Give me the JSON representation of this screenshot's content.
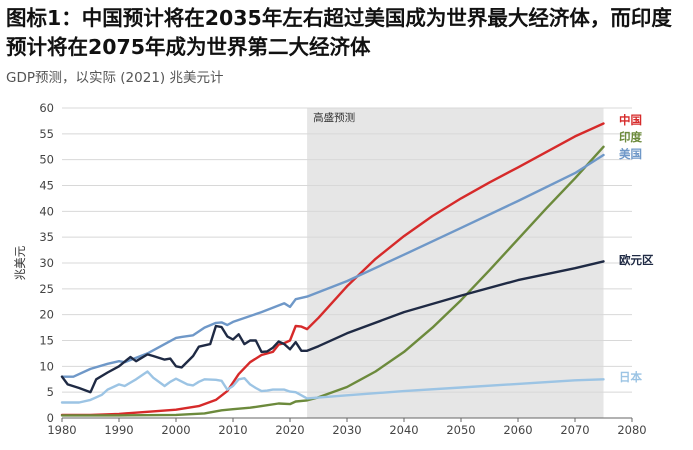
{
  "header": {
    "title": "图标1：中国预计将在2035年左右超过美国成为世界最大经济体，而印度预计将在2075年成为世界第二大经济体",
    "subtitle": "GDP预测，以实际 (2021) 兆美元计"
  },
  "chart_data": {
    "type": "line",
    "ylabel": "兆美元",
    "xlabel": "",
    "xlim": [
      1980,
      2080
    ],
    "ylim": [
      0,
      60
    ],
    "x_ticks": [
      1980,
      1990,
      2000,
      2010,
      2020,
      2030,
      2040,
      2050,
      2060,
      2070,
      2080
    ],
    "y_ticks": [
      0,
      5,
      10,
      15,
      20,
      25,
      30,
      35,
      40,
      45,
      50,
      55,
      60
    ],
    "grid": "horizontal",
    "forecast_region": {
      "label": "高盛预测",
      "x_start": 2023,
      "x_end": 2075,
      "color": "#e6e6e6"
    },
    "series": [
      {
        "name": "中国",
        "color": "#d62a2a",
        "points": [
          [
            1980,
            0.6
          ],
          [
            1985,
            0.6
          ],
          [
            1990,
            0.8
          ],
          [
            1995,
            1.2
          ],
          [
            2000,
            1.6
          ],
          [
            2004,
            2.3
          ],
          [
            2007,
            3.5
          ],
          [
            2009,
            5.2
          ],
          [
            2011,
            8.5
          ],
          [
            2013,
            10.8
          ],
          [
            2015,
            12.2
          ],
          [
            2017,
            12.8
          ],
          [
            2018,
            14.2
          ],
          [
            2019,
            14.5
          ],
          [
            2020,
            15.0
          ],
          [
            2021,
            17.8
          ],
          [
            2022,
            17.7
          ],
          [
            2023,
            17.2
          ],
          [
            2025,
            19.4
          ],
          [
            2030,
            25.5
          ],
          [
            2035,
            30.8
          ],
          [
            2040,
            35.2
          ],
          [
            2045,
            39.1
          ],
          [
            2050,
            42.5
          ],
          [
            2055,
            45.6
          ],
          [
            2060,
            48.5
          ],
          [
            2065,
            51.5
          ],
          [
            2070,
            54.5
          ],
          [
            2075,
            57.0
          ]
        ]
      },
      {
        "name": "印度",
        "color": "#6c8a3c",
        "points": [
          [
            1980,
            0.5
          ],
          [
            1990,
            0.5
          ],
          [
            2000,
            0.6
          ],
          [
            2005,
            0.9
          ],
          [
            2008,
            1.5
          ],
          [
            2010,
            1.7
          ],
          [
            2013,
            2.0
          ],
          [
            2015,
            2.3
          ],
          [
            2018,
            2.8
          ],
          [
            2020,
            2.7
          ],
          [
            2021,
            3.2
          ],
          [
            2023,
            3.4
          ],
          [
            2025,
            4.0
          ],
          [
            2030,
            6.0
          ],
          [
            2035,
            9.0
          ],
          [
            2040,
            12.8
          ],
          [
            2045,
            17.5
          ],
          [
            2050,
            22.8
          ],
          [
            2055,
            28.6
          ],
          [
            2060,
            34.6
          ],
          [
            2065,
            40.6
          ],
          [
            2070,
            46.4
          ],
          [
            2075,
            52.5
          ]
        ]
      },
      {
        "name": "美国",
        "color": "#6f98c8",
        "points": [
          [
            1980,
            8.0
          ],
          [
            1982,
            8.0
          ],
          [
            1985,
            9.5
          ],
          [
            1988,
            10.5
          ],
          [
            1990,
            11.0
          ],
          [
            1991,
            10.8
          ],
          [
            1995,
            12.5
          ],
          [
            2000,
            15.5
          ],
          [
            2001,
            15.7
          ],
          [
            2003,
            16.0
          ],
          [
            2005,
            17.5
          ],
          [
            2007,
            18.4
          ],
          [
            2008,
            18.5
          ],
          [
            2009,
            18.0
          ],
          [
            2010,
            18.6
          ],
          [
            2015,
            20.5
          ],
          [
            2019,
            22.2
          ],
          [
            2020,
            21.5
          ],
          [
            2021,
            23.0
          ],
          [
            2023,
            23.5
          ],
          [
            2030,
            26.5
          ],
          [
            2040,
            31.6
          ],
          [
            2050,
            36.8
          ],
          [
            2060,
            42.0
          ],
          [
            2070,
            47.4
          ],
          [
            2075,
            50.9
          ]
        ]
      },
      {
        "name": "欧元区",
        "color": "#1f2a44",
        "points": [
          [
            1980,
            8.0
          ],
          [
            1981,
            6.5
          ],
          [
            1983,
            5.8
          ],
          [
            1985,
            5.0
          ],
          [
            1986,
            7.5
          ],
          [
            1988,
            8.8
          ],
          [
            1990,
            10.0
          ],
          [
            1992,
            11.8
          ],
          [
            1993,
            11.0
          ],
          [
            1995,
            12.3
          ],
          [
            1996,
            12.0
          ],
          [
            1998,
            11.3
          ],
          [
            1999,
            11.5
          ],
          [
            2000,
            10.0
          ],
          [
            2001,
            9.8
          ],
          [
            2003,
            12.0
          ],
          [
            2004,
            13.8
          ],
          [
            2006,
            14.3
          ],
          [
            2007,
            17.8
          ],
          [
            2008,
            17.6
          ],
          [
            2009,
            15.8
          ],
          [
            2010,
            15.2
          ],
          [
            2011,
            16.2
          ],
          [
            2012,
            14.3
          ],
          [
            2013,
            15.0
          ],
          [
            2014,
            15.0
          ],
          [
            2015,
            12.8
          ],
          [
            2016,
            12.9
          ],
          [
            2017,
            13.6
          ],
          [
            2018,
            14.8
          ],
          [
            2019,
            14.3
          ],
          [
            2020,
            13.3
          ],
          [
            2021,
            14.7
          ],
          [
            2022,
            13.0
          ],
          [
            2023,
            13.0
          ],
          [
            2025,
            13.9
          ],
          [
            2030,
            16.4
          ],
          [
            2040,
            20.5
          ],
          [
            2050,
            23.7
          ],
          [
            2060,
            26.7
          ],
          [
            2070,
            29.0
          ],
          [
            2075,
            30.3
          ]
        ]
      },
      {
        "name": "日本",
        "color": "#9cc4e4",
        "points": [
          [
            1980,
            3.0
          ],
          [
            1983,
            3.0
          ],
          [
            1985,
            3.5
          ],
          [
            1987,
            4.5
          ],
          [
            1988,
            5.5
          ],
          [
            1990,
            6.5
          ],
          [
            1991,
            6.2
          ],
          [
            1993,
            7.5
          ],
          [
            1995,
            9.0
          ],
          [
            1996,
            7.8
          ],
          [
            1998,
            6.2
          ],
          [
            1999,
            7.0
          ],
          [
            2000,
            7.6
          ],
          [
            2002,
            6.5
          ],
          [
            2003,
            6.3
          ],
          [
            2004,
            7.0
          ],
          [
            2005,
            7.5
          ],
          [
            2007,
            7.4
          ],
          [
            2008,
            7.2
          ],
          [
            2009,
            5.5
          ],
          [
            2010,
            6.2
          ],
          [
            2011,
            7.5
          ],
          [
            2012,
            7.7
          ],
          [
            2013,
            6.5
          ],
          [
            2014,
            5.8
          ],
          [
            2015,
            5.2
          ],
          [
            2016,
            5.3
          ],
          [
            2017,
            5.5
          ],
          [
            2018,
            5.5
          ],
          [
            2019,
            5.5
          ],
          [
            2020,
            5.1
          ],
          [
            2021,
            5.0
          ],
          [
            2022,
            4.4
          ],
          [
            2023,
            3.8
          ],
          [
            2030,
            4.4
          ],
          [
            2040,
            5.2
          ],
          [
            2050,
            5.9
          ],
          [
            2060,
            6.6
          ],
          [
            2070,
            7.3
          ],
          [
            2075,
            7.5
          ]
        ]
      }
    ]
  }
}
